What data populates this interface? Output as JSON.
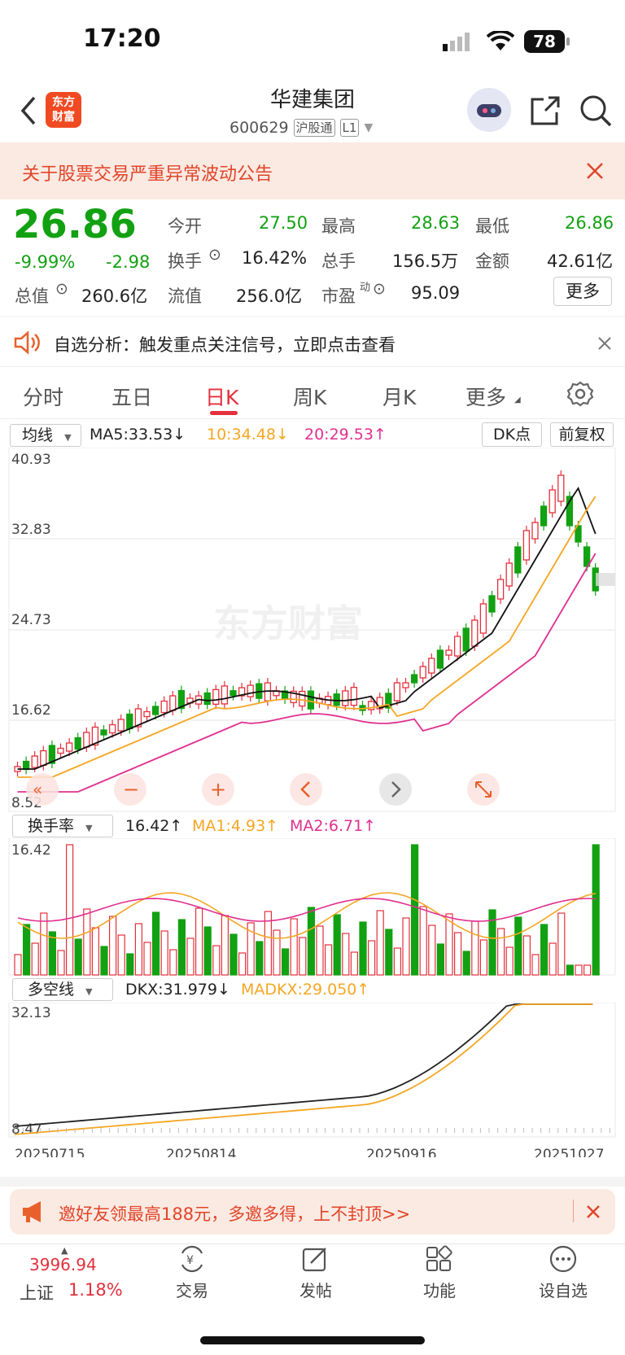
{
  "status_bar": {
    "time": "17:20",
    "battery": "78"
  },
  "header": {
    "logo_text_1": "东方",
    "logo_text_2": "财富",
    "name": "华建集团",
    "code": "600629",
    "tag_market": "沪股通",
    "tag_level": "L1"
  },
  "notice": {
    "text": "关于股票交易严重异常波动公告"
  },
  "quote": {
    "price": "26.86",
    "change_pct": "-9.99%",
    "change": "-2.98",
    "open_label": "今开",
    "open": "27.50",
    "high_label": "最高",
    "high": "28.63",
    "low_label": "最低",
    "low": "26.86",
    "turnover_label": "换手",
    "turnover": "16.42%",
    "volume_label": "总手",
    "volume": "156.5万",
    "amount_label": "金额",
    "amount": "42.61亿",
    "mcap_label": "总值",
    "mcap": "260.6亿",
    "float_label": "流值",
    "float": "256.0亿",
    "pe_label": "市盈",
    "pe_sup": "动",
    "pe": "95.09",
    "more": "更多"
  },
  "analysis": {
    "text": "自选分析：触发重点关注信号，立即点击查看"
  },
  "tabs": [
    "分时",
    "五日",
    "日K",
    "周K",
    "月K",
    "更多"
  ],
  "kline": {
    "indicator_select": "均线",
    "ma5": "MA5:33.53↓",
    "ma10": "10:34.48↓",
    "ma20": "20:29.53↑",
    "dk_button": "DK点",
    "adjust_button": "前复权",
    "y_labels": [
      "40.93",
      "32.83",
      "24.73",
      "16.62",
      "8.52"
    ],
    "watermark": "东方财富"
  },
  "turnover_panel": {
    "select": "换手率",
    "value": "16.42↑",
    "ma1": "MA1:4.93↑",
    "ma2": "MA2:6.71↑",
    "max_label": "16.42"
  },
  "dkx_panel": {
    "select": "多空线",
    "dkx": "DKX:31.979↓",
    "madkx": "MADKX:29.050↑",
    "max_label": "32.13",
    "min_label": "8.47",
    "dates": [
      "20250715",
      "20250814",
      "20250916",
      "20251027"
    ]
  },
  "promo": {
    "text": "邀好友领最高188元，多邀多得，上不封顶>>"
  },
  "bottom_nav": {
    "index_value": "3996.94",
    "index_name": "上证",
    "index_pct": "1.18%",
    "items": [
      "交易",
      "发帖",
      "功能",
      "设自选"
    ]
  },
  "colors": {
    "up": "#e3303c",
    "down": "#12a112",
    "ma5": "#111111",
    "ma10": "#f5a623",
    "ma20": "#e0308f"
  }
}
